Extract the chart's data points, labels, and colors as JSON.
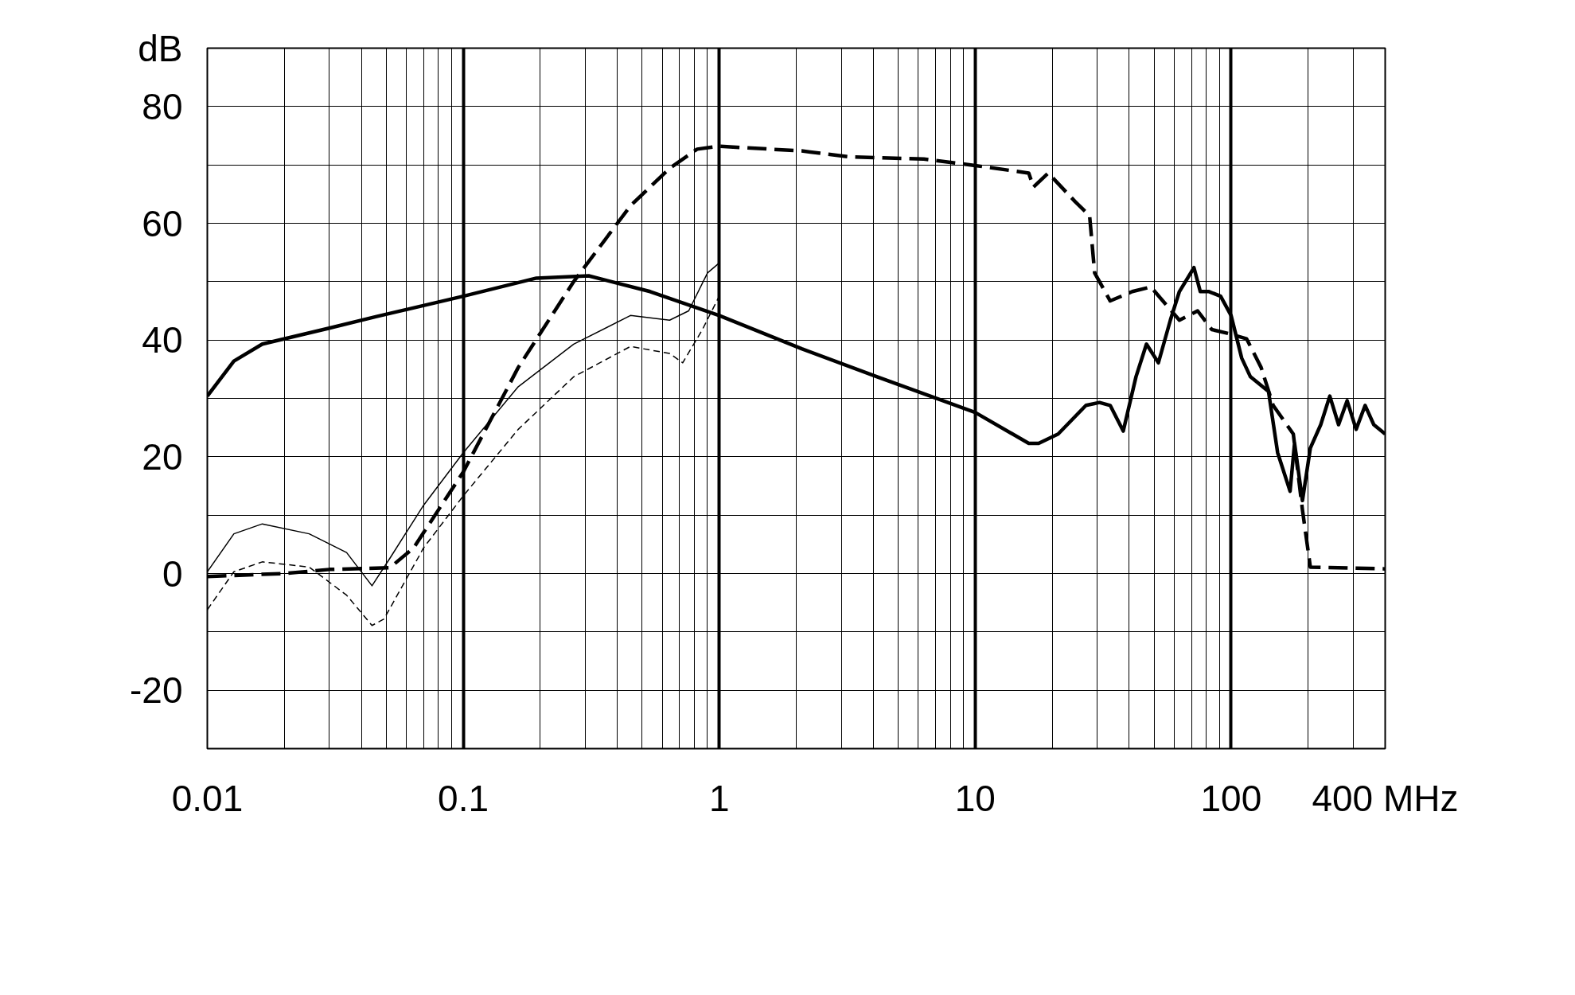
{
  "chart_data": {
    "type": "line",
    "log": "x",
    "grid": true,
    "xlim": [
      0.01,
      400
    ],
    "ylim": [
      -30,
      90
    ],
    "xticks": [
      {
        "value": 0.01,
        "label": "0.01"
      },
      {
        "value": 0.02,
        "label": null
      },
      {
        "value": 0.03,
        "label": null
      },
      {
        "value": 0.04,
        "label": null
      },
      {
        "value": 0.05,
        "label": null
      },
      {
        "value": 0.06,
        "label": null
      },
      {
        "value": 0.07,
        "label": null
      },
      {
        "value": 0.08,
        "label": null
      },
      {
        "value": 0.09,
        "label": null
      },
      {
        "value": 0.1,
        "label": "0.1"
      },
      {
        "value": 0.2,
        "label": null
      },
      {
        "value": 0.3,
        "label": null
      },
      {
        "value": 0.4,
        "label": null
      },
      {
        "value": 0.5,
        "label": null
      },
      {
        "value": 0.6,
        "label": null
      },
      {
        "value": 0.7,
        "label": null
      },
      {
        "value": 0.8,
        "label": null
      },
      {
        "value": 0.9,
        "label": null
      },
      {
        "value": 1,
        "label": "1"
      },
      {
        "value": 2,
        "label": null
      },
      {
        "value": 3,
        "label": null
      },
      {
        "value": 4,
        "label": null
      },
      {
        "value": 5,
        "label": null
      },
      {
        "value": 6,
        "label": null
      },
      {
        "value": 7,
        "label": null
      },
      {
        "value": 8,
        "label": null
      },
      {
        "value": 9,
        "label": null
      },
      {
        "value": 10,
        "label": "10"
      },
      {
        "value": 20,
        "label": null
      },
      {
        "value": 30,
        "label": null
      },
      {
        "value": 40,
        "label": null
      },
      {
        "value": 50,
        "label": null
      },
      {
        "value": 60,
        "label": null
      },
      {
        "value": 70,
        "label": null
      },
      {
        "value": 80,
        "label": null
      },
      {
        "value": 90,
        "label": null
      },
      {
        "value": 100,
        "label": "100"
      },
      {
        "value": 200,
        "label": null
      },
      {
        "value": 300,
        "label": null
      },
      {
        "value": 400,
        "label": "400 MHz"
      }
    ],
    "yticks": [
      {
        "value": -30,
        "label": null
      },
      -20,
      {
        "value": -10,
        "label": null
      },
      0,
      {
        "value": 10,
        "label": null
      },
      20,
      {
        "value": 30,
        "label": null
      },
      40,
      {
        "value": 50,
        "label": null
      },
      60,
      {
        "value": 70,
        "label": null
      },
      80,
      {
        "value": 90,
        "label": "dB"
      }
    ],
    "series": [
      {
        "color": "#000000",
        "line_style": "solid",
        "x": [
          0.01,
          0.0127,
          0.0164,
          0.0297,
          0.0455,
          0.1,
          0.193,
          0.309,
          0.537,
          1,
          2.1,
          4.14,
          10,
          16.2,
          17.7,
          21.1,
          27.1,
          30.6,
          33.7,
          37.9,
          42.5,
          46.7,
          52,
          57.9,
          62.8,
          71.6,
          75.8,
          82,
          91,
          100,
          110,
          119,
          140,
          152,
          170,
          177,
          190,
          204,
          224,
          243,
          263,
          284,
          308,
          334,
          361,
          400
        ],
        "values": [
          30.4,
          36.4,
          39.3,
          42,
          44,
          47.5,
          50.6,
          51,
          48.3,
          44.2,
          38.5,
          33.7,
          27.6,
          22.3,
          22.3,
          23.9,
          28.8,
          29.3,
          28.8,
          24.4,
          33.7,
          39.3,
          36.1,
          43.4,
          48.3,
          52.4,
          48.3,
          48.3,
          47.5,
          44.2,
          36.9,
          33.7,
          31.2,
          20.7,
          14.1,
          22.3,
          12.5,
          21.5,
          25.5,
          30.4,
          25.5,
          29.6,
          24.7,
          28.8,
          25.5,
          23.9
        ]
      },
      {
        "color": "#000000",
        "line_style": "dashed",
        "x": [
          0.01,
          0.02,
          0.03,
          0.0517,
          0.064,
          0.1,
          0.164,
          0.27,
          0.45,
          0.64,
          0.82,
          1,
          2.1,
          3.2,
          6.3,
          10,
          16.2,
          16.9,
          19.3,
          24.6,
          28,
          29.3,
          33.7,
          41.1,
          48.6,
          62.8,
          74,
          84,
          100,
          115,
          131,
          146,
          175,
          190,
          204,
          400
        ],
        "values": [
          -0.5,
          0,
          0.7,
          1,
          4.4,
          17.4,
          35.3,
          50,
          63,
          69.4,
          72.7,
          73.2,
          72.4,
          71.4,
          71,
          69.9,
          68.6,
          66.2,
          68.6,
          63.7,
          61.3,
          51.5,
          46.7,
          48.3,
          49.1,
          43.4,
          45,
          41.8,
          41,
          40.2,
          35.3,
          28.8,
          23.9,
          10.9,
          1.1,
          0.8
        ]
      },
      {
        "color": "#000000",
        "line_style": "solid",
        "x": [
          0.01,
          0.0127,
          0.0164,
          0.025,
          0.035,
          0.044,
          0.052,
          0.07,
          0.1,
          0.164,
          0.27,
          0.45,
          0.64,
          0.76,
          0.9,
          1
        ],
        "values": [
          0.3,
          6.8,
          8.5,
          6.8,
          3.6,
          -2.1,
          2.8,
          11.7,
          20.7,
          32,
          39.3,
          44.2,
          43.4,
          45,
          51.5,
          53.2
        ]
      },
      {
        "color": "#000000",
        "line_style": "dashed",
        "x": [
          0.01,
          0.0127,
          0.0164,
          0.025,
          0.035,
          0.044,
          0.049,
          0.07,
          0.1,
          0.164,
          0.27,
          0.45,
          0.64,
          0.72,
          0.86,
          1
        ],
        "values": [
          -6.2,
          0.3,
          2,
          1.1,
          -3.7,
          -8.9,
          -7.8,
          4.4,
          13.3,
          24.7,
          33.7,
          38.9,
          37.7,
          36.1,
          41.8,
          47.5
        ]
      }
    ]
  }
}
